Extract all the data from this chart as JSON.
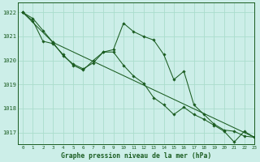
{
  "title": "Graphe pression niveau de la mer (hPa)",
  "background_color": "#cceee8",
  "grid_color": "#aaddcc",
  "line_color": "#1a5c20",
  "xlim": [
    -0.5,
    23
  ],
  "ylim": [
    1016.5,
    1022.4
  ],
  "yticks": [
    1017,
    1018,
    1019,
    1020,
    1021,
    1022
  ],
  "xticks": [
    0,
    1,
    2,
    3,
    4,
    5,
    6,
    7,
    8,
    9,
    10,
    11,
    12,
    13,
    14,
    15,
    16,
    17,
    18,
    19,
    20,
    21,
    22,
    23
  ],
  "series1_x": [
    0,
    1,
    2,
    3,
    4,
    5,
    6,
    7,
    8,
    9,
    10,
    11,
    12,
    13,
    14,
    15,
    16,
    17,
    18,
    19,
    20,
    21,
    22,
    23
  ],
  "series1_y": [
    1022.0,
    1021.75,
    1021.25,
    1020.75,
    1020.2,
    1019.85,
    1019.65,
    1019.9,
    1020.35,
    1020.45,
    1021.55,
    1021.2,
    1021.0,
    1020.85,
    1020.25,
    1019.2,
    1019.55,
    1018.15,
    1017.75,
    1017.35,
    1017.1,
    1017.05,
    1016.85,
    1016.8
  ],
  "series2_x": [
    0,
    1,
    2,
    3,
    4,
    5,
    6,
    7,
    8,
    9,
    10,
    11,
    12,
    13,
    14,
    15,
    16,
    17,
    18,
    19,
    20,
    21,
    22,
    23
  ],
  "series2_y": [
    1022.0,
    1021.65,
    1020.8,
    1020.7,
    1020.25,
    1019.8,
    1019.6,
    1020.0,
    1020.35,
    1020.35,
    1019.8,
    1019.35,
    1019.05,
    1018.45,
    1018.15,
    1017.75,
    1018.05,
    1017.75,
    1017.55,
    1017.3,
    1017.05,
    1016.6,
    1017.05,
    1016.8
  ],
  "series3_x": [
    0,
    3,
    23
  ],
  "series3_y": [
    1022.0,
    1020.75,
    1016.8
  ],
  "xlabel_fontsize": 5.8,
  "ylabel_fontsize": 5.5,
  "xlabel_fontweight": "bold"
}
